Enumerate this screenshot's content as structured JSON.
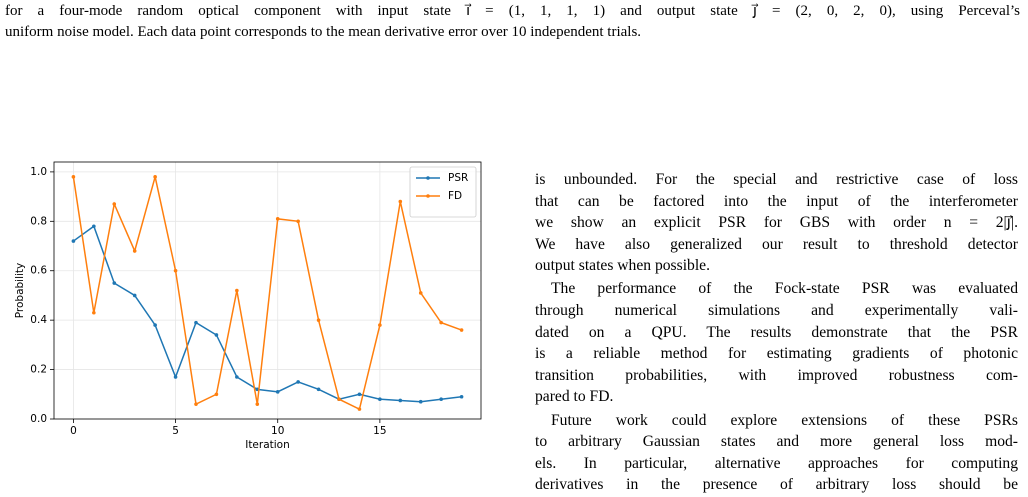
{
  "caption": {
    "lines": [
      "for a four-mode random optical component with input state i⃗ = (1, 1, 1, 1) and output state j⃗ = (2, 0, 2, 0), using Perceval’s",
      "uniform noise model. Each data point corresponds to the mean derivative error over 10 independent trials."
    ]
  },
  "chart_data": {
    "type": "line",
    "x_label": "Iteration",
    "y_label": "Probability",
    "x": [
      0,
      1,
      2,
      3,
      4,
      5,
      6,
      7,
      8,
      9,
      10,
      11,
      12,
      13,
      14,
      15,
      16,
      17,
      18,
      19
    ],
    "series": [
      {
        "name": "PSR",
        "color": "#1f77b4",
        "values": [
          0.72,
          0.78,
          0.55,
          0.5,
          0.38,
          0.17,
          0.39,
          0.34,
          0.17,
          0.12,
          0.11,
          0.15,
          0.12,
          0.08,
          0.1,
          0.08,
          0.075,
          0.07,
          0.08,
          0.09
        ]
      },
      {
        "name": "FD",
        "color": "#ff7f0e",
        "values": [
          0.98,
          0.43,
          0.87,
          0.68,
          0.98,
          0.6,
          0.06,
          0.1,
          0.52,
          0.06,
          0.81,
          0.8,
          0.4,
          0.08,
          0.04,
          0.38,
          0.88,
          0.51,
          0.39,
          0.36
        ]
      }
    ],
    "xlim": [
      -0.95,
      19.95
    ],
    "xticks": [
      0,
      5,
      10,
      15
    ],
    "ylim": [
      0,
      1.04
    ],
    "yticks": [
      {
        "value": 0,
        "label": "0.0"
      },
      0.2,
      0.4,
      0.6,
      0.8,
      {
        "value": 1,
        "label": "1.0"
      }
    ],
    "grid": true,
    "legend": "upper-right"
  },
  "body": {
    "paragraphs": [
      [
        "is unbounded. For the special and restrictive case of loss",
        "that can be factored into the input of the interferometer",
        "we show an explicit PSR for GBS with order n = 2|j⃗|.",
        "We have also generalized our result to threshold detector",
        "output states when possible."
      ],
      [
        "The performance of the Fock-state PSR was evaluated",
        "through numerical simulations and experimentally vali-",
        "dated on a QPU. The results demonstrate that the PSR",
        "is a reliable method for estimating gradients of photonic",
        "transition probabilities, with improved robustness com-",
        "pared to FD."
      ],
      [
        "Future work could explore extensions of these PSRs",
        "to arbitrary Gaussian states and more general loss mod-",
        "els. In particular, alternative approaches for computing",
        "derivatives in the presence of arbitrary loss should be"
      ]
    ]
  }
}
